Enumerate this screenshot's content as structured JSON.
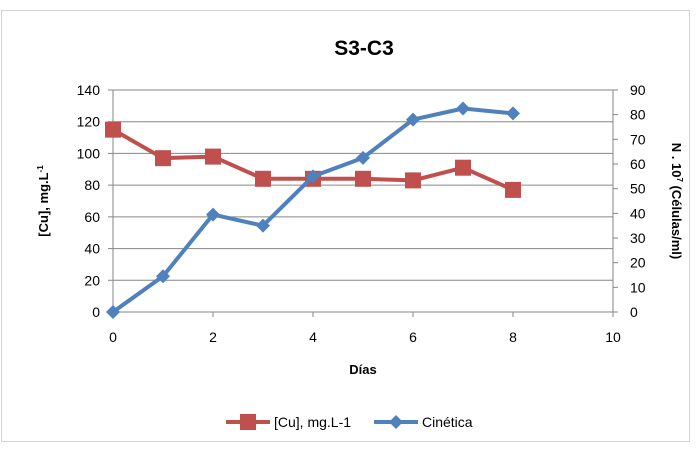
{
  "chart_data": {
    "type": "line",
    "title": "S3-C3",
    "xlabel": "Días",
    "ylabel_left": "[Cu], mg.L",
    "ylabel_left_sup": "-1",
    "ylabel_right": "N . 10",
    "ylabel_right_sup": "7",
    "ylabel_right_rest": " (Células/ml)",
    "x_ticks": [
      "0",
      "2",
      "4",
      "6",
      "8",
      "10"
    ],
    "y_left_ticks": [
      "0",
      "20",
      "40",
      "60",
      "80",
      "100",
      "120",
      "140"
    ],
    "y_right_ticks": [
      "0",
      "10",
      "20",
      "30",
      "40",
      "50",
      "60",
      "70",
      "80",
      "90"
    ],
    "xlim": [
      0,
      10
    ],
    "ylim_left": [
      0,
      140
    ],
    "ylim_right": [
      0,
      90
    ],
    "grid": "horizontal",
    "legend_position": "bottom",
    "series": [
      {
        "name": "[Cu], mg.L-1",
        "axis": "left",
        "color": "#c0504d",
        "marker": "square",
        "x": [
          0,
          1,
          2,
          3,
          4,
          5,
          6,
          7,
          8
        ],
        "y": [
          115,
          97,
          98,
          84,
          84,
          84,
          83,
          91,
          77
        ]
      },
      {
        "name": "Cinética",
        "axis": "right",
        "color": "#4f81bd",
        "marker": "diamond",
        "x": [
          0,
          1,
          2,
          3,
          4,
          5,
          6,
          7,
          8
        ],
        "y": [
          0,
          14.5,
          39.5,
          35,
          55,
          62.5,
          78,
          82.5,
          80.5
        ]
      }
    ]
  }
}
